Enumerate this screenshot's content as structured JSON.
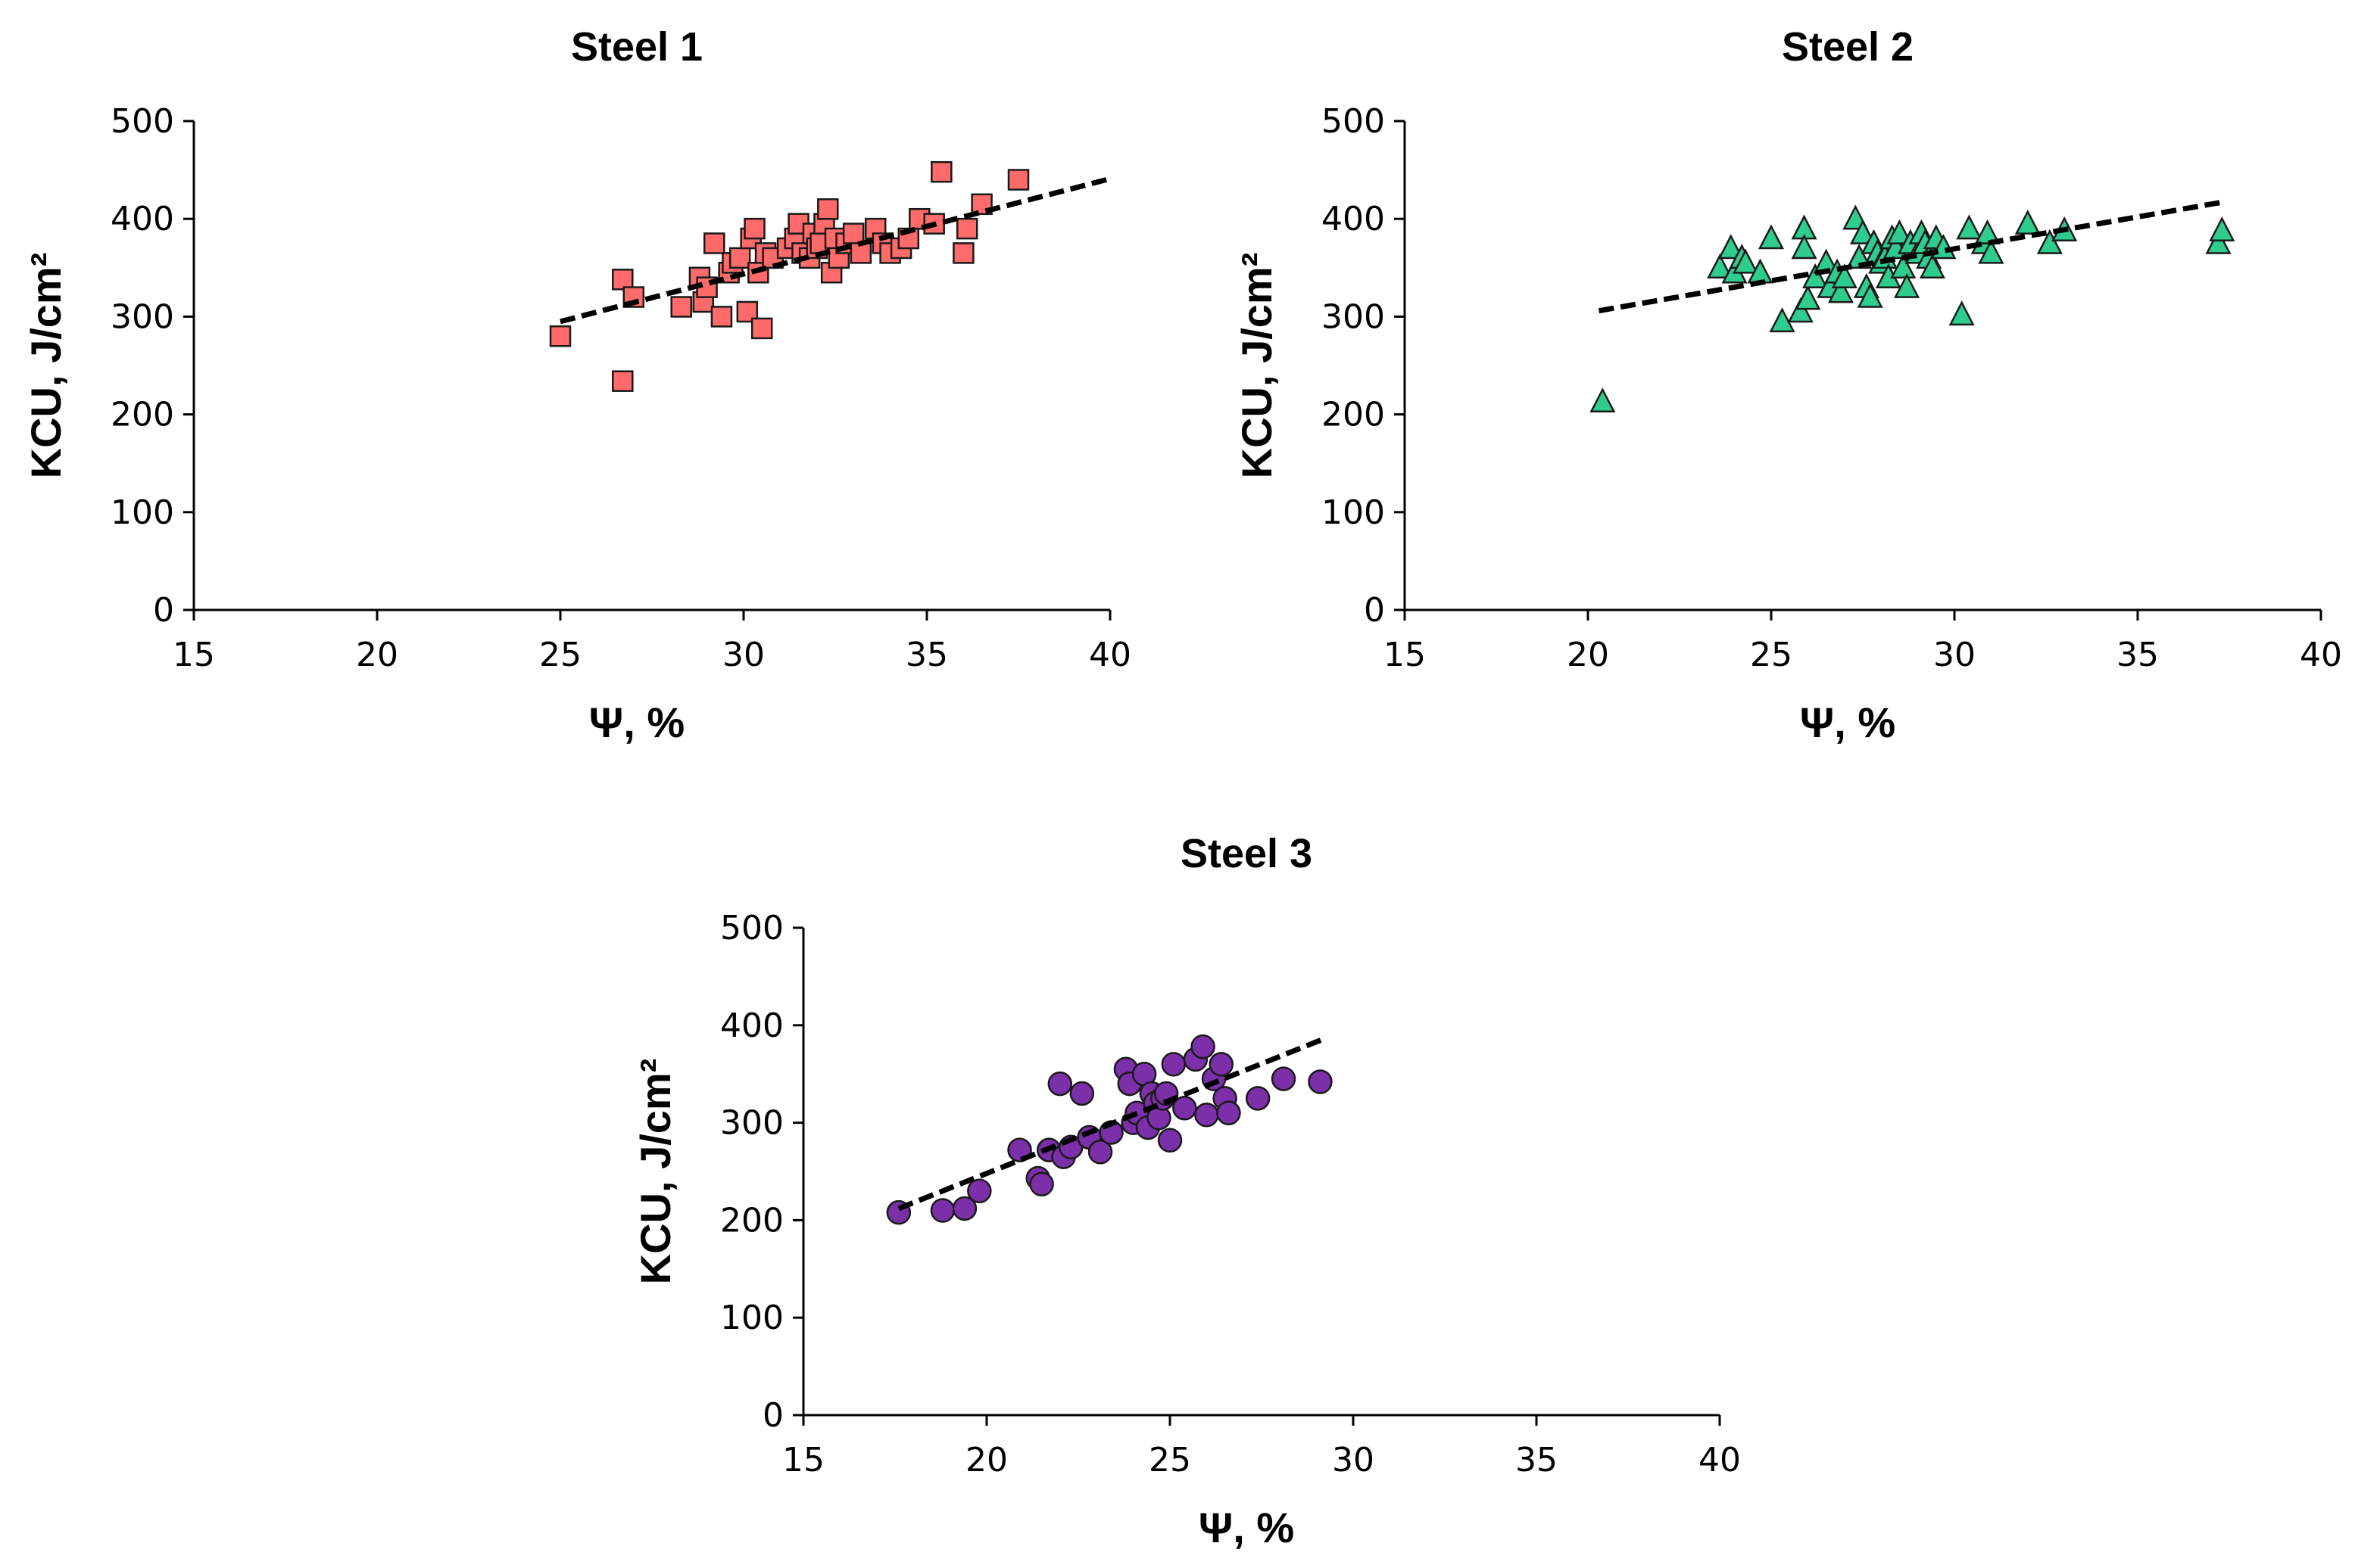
{
  "chart_data": [
    {
      "type": "scatter",
      "title": "Steel 1",
      "xlabel": "Ψ, %",
      "ylabel": "KCU, J/cm²",
      "xlim": [
        15,
        40
      ],
      "ylim": [
        0,
        500
      ],
      "xticks": [
        "15",
        "20",
        "25",
        "30",
        "35",
        "40"
      ],
      "yticks": [
        "0",
        "100",
        "200",
        "300",
        "400",
        "500"
      ],
      "marker": "square",
      "color": "#ff6b6b",
      "trendline": {
        "x": [
          25,
          40
        ],
        "y": [
          295,
          441
        ]
      },
      "series": [
        {
          "name": "Steel 1",
          "x": [
            25.0,
            26.7,
            26.7,
            27.0,
            28.3,
            28.8,
            28.9,
            29.0,
            29.2,
            29.4,
            29.6,
            29.7,
            29.9,
            30.1,
            30.2,
            30.3,
            30.4,
            30.5,
            30.6,
            30.8,
            31.2,
            31.4,
            31.5,
            31.6,
            31.8,
            31.9,
            32.0,
            32.1,
            32.2,
            32.3,
            32.4,
            32.5,
            32.6,
            32.8,
            33.0,
            33.2,
            33.6,
            33.8,
            34.0,
            34.3,
            34.5,
            34.8,
            35.2,
            35.4,
            36.0,
            36.1,
            36.5,
            37.5
          ],
          "y": [
            280,
            234,
            338,
            320,
            310,
            340,
            315,
            330,
            375,
            300,
            345,
            355,
            360,
            305,
            380,
            390,
            345,
            288,
            365,
            360,
            370,
            380,
            395,
            365,
            360,
            385,
            370,
            375,
            395,
            410,
            345,
            380,
            360,
            375,
            385,
            365,
            390,
            375,
            365,
            370,
            380,
            400,
            395,
            448,
            365,
            390,
            415,
            440
          ]
        }
      ]
    },
    {
      "type": "scatter",
      "title": "Steel 2",
      "xlabel": "Ψ, %",
      "ylabel": "KCU, J/cm²",
      "xlim": [
        15,
        40
      ],
      "ylim": [
        0,
        500
      ],
      "xticks": [
        "15",
        "20",
        "25",
        "30",
        "35",
        "40"
      ],
      "yticks": [
        "0",
        "100",
        "200",
        "300",
        "400",
        "500"
      ],
      "marker": "triangle",
      "color": "#2ecc8f",
      "trendline": {
        "x": [
          20.3,
          37.3
        ],
        "y": [
          306,
          417
        ]
      },
      "series": [
        {
          "name": "Steel 2",
          "x": [
            20.4,
            23.6,
            23.9,
            24.0,
            24.2,
            24.3,
            24.7,
            25.0,
            25.3,
            25.8,
            25.9,
            25.9,
            26.0,
            26.2,
            26.5,
            26.6,
            26.8,
            26.9,
            27.0,
            27.3,
            27.4,
            27.5,
            27.6,
            27.7,
            27.8,
            27.9,
            28.0,
            28.1,
            28.2,
            28.3,
            28.4,
            28.5,
            28.6,
            28.7,
            28.8,
            29.0,
            29.1,
            29.2,
            29.3,
            29.4,
            29.5,
            29.7,
            30.2,
            30.4,
            30.8,
            30.9,
            31.0,
            32.0,
            32.6,
            33.0,
            37.2,
            37.3
          ],
          "y": [
            213,
            350,
            370,
            345,
            360,
            355,
            345,
            380,
            295,
            305,
            390,
            370,
            318,
            340,
            355,
            330,
            345,
            325,
            340,
            400,
            360,
            385,
            330,
            320,
            375,
            365,
            355,
            360,
            340,
            380,
            370,
            385,
            350,
            330,
            375,
            365,
            385,
            375,
            360,
            350,
            380,
            370,
            302,
            390,
            375,
            385,
            365,
            395,
            375,
            388,
            375,
            388
          ]
        }
      ]
    },
    {
      "type": "scatter",
      "title": "Steel 3",
      "xlabel": "Ψ, %",
      "ylabel": "KCU, J/cm²",
      "xlim": [
        15,
        40
      ],
      "ylim": [
        0,
        500
      ],
      "xticks": [
        "15",
        "20",
        "25",
        "30",
        "35",
        "40"
      ],
      "yticks": [
        "0",
        "100",
        "200",
        "300",
        "400",
        "500"
      ],
      "marker": "circle",
      "color": "#7b2fa8",
      "trendline": {
        "x": [
          17.6,
          29.2
        ],
        "y": [
          212,
          386
        ]
      },
      "series": [
        {
          "name": "Steel 3",
          "x": [
            17.6,
            18.8,
            19.4,
            19.8,
            20.9,
            21.4,
            21.5,
            21.7,
            22.0,
            22.1,
            22.3,
            22.6,
            22.8,
            23.1,
            23.4,
            23.8,
            23.9,
            24.0,
            24.1,
            24.3,
            24.4,
            24.5,
            24.6,
            24.7,
            24.8,
            24.9,
            25.0,
            25.1,
            25.4,
            25.7,
            25.9,
            26.0,
            26.2,
            26.4,
            26.5,
            26.6,
            27.4,
            28.1,
            29.1
          ],
          "y": [
            208,
            210,
            212,
            230,
            272,
            243,
            237,
            272,
            340,
            265,
            275,
            330,
            285,
            270,
            290,
            355,
            340,
            300,
            310,
            350,
            295,
            330,
            320,
            305,
            325,
            330,
            282,
            360,
            315,
            365,
            378,
            308,
            345,
            360,
            325,
            310,
            325,
            345,
            342
          ]
        }
      ]
    }
  ]
}
